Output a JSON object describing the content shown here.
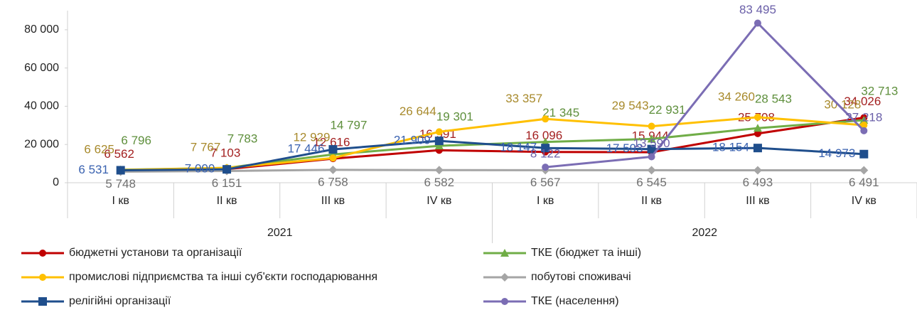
{
  "chart_data": {
    "type": "line",
    "categories": [
      "I кв",
      "II кв",
      "III кв",
      "IV кв",
      "I кв",
      "II кв",
      "III кв",
      "IV кв"
    ],
    "groups": [
      {
        "label": "2021",
        "span": 4
      },
      {
        "label": "2022",
        "span": 4
      }
    ],
    "ylim": [
      0,
      90000
    ],
    "yticks": [
      0,
      {
        "value": 20000,
        "label": "20 000"
      },
      {
        "value": 40000,
        "label": "40 000"
      },
      {
        "value": 60000,
        "label": "60 000"
      },
      {
        "value": 80000,
        "label": "80 000"
      }
    ],
    "grid": false,
    "legend": "bottom",
    "series": [
      {
        "name": "бюджетні установи та організації",
        "color": "#c00000",
        "label_color": "#a32020",
        "marker": "circle",
        "values": [
          6562,
          7103,
          12616,
          16991,
          16096,
          15944,
          25708,
          34026
        ],
        "value_labels": [
          "6 562",
          "7 103",
          "12 616",
          "16 991",
          "16 096",
          "15 944",
          "25 708",
          "34 026"
        ]
      },
      {
        "name": "ТКЕ (бюджет та інші)",
        "color": "#70ad47",
        "label_color": "#5e8f3c",
        "marker": "triangle",
        "values": [
          6796,
          7783,
          14797,
          19301,
          21345,
          22931,
          28543,
          32713
        ],
        "value_labels": [
          "6 796",
          "7 783",
          "14 797",
          "19 301",
          "21 345",
          "22 931",
          "28 543",
          "32 713"
        ]
      },
      {
        "name": "промислові підприємства та інші суб'єкти господарювання",
        "color": "#ffc000",
        "label_color": "#a88a2c",
        "marker": "circle",
        "values": [
          6625,
          7767,
          12929,
          26644,
          33357,
          29543,
          34260,
          30128
        ],
        "value_labels": [
          "6 625",
          "7 767",
          "12 929",
          "26 644",
          "33 357",
          "29 543",
          "34 260",
          "30 128"
        ]
      },
      {
        "name": "побутові споживачі",
        "color": "#a5a5a5",
        "label_color": "#6f6f6f",
        "marker": "diamond",
        "values": [
          5748,
          6151,
          6758,
          6582,
          6567,
          6545,
          6493,
          6491
        ],
        "value_labels": [
          "5 748",
          "6 151",
          "6 758",
          "6 582",
          "6 567",
          "6 545",
          "6 493",
          "6 491"
        ]
      },
      {
        "name": "релігійні організації",
        "color": "#1f4e8c",
        "label_color": "#3a62b0",
        "marker": "square",
        "values": [
          6531,
          7000,
          17446,
          21909,
          18147,
          17593,
          18154,
          14973
        ],
        "value_labels": [
          "6 531",
          "7 000",
          "17 446",
          "21 909",
          "18 147",
          "17 593",
          "18 154",
          "14 973"
        ]
      },
      {
        "name": "ТКЕ (населення)",
        "color": "#7b6db4",
        "label_color": "#6a5fa8",
        "marker": "circle",
        "values": [
          null,
          null,
          null,
          null,
          8122,
          13590,
          83495,
          27218
        ],
        "value_labels": [
          null,
          null,
          null,
          null,
          "8 122",
          "13 590",
          "83 495",
          "27 218"
        ]
      }
    ]
  }
}
